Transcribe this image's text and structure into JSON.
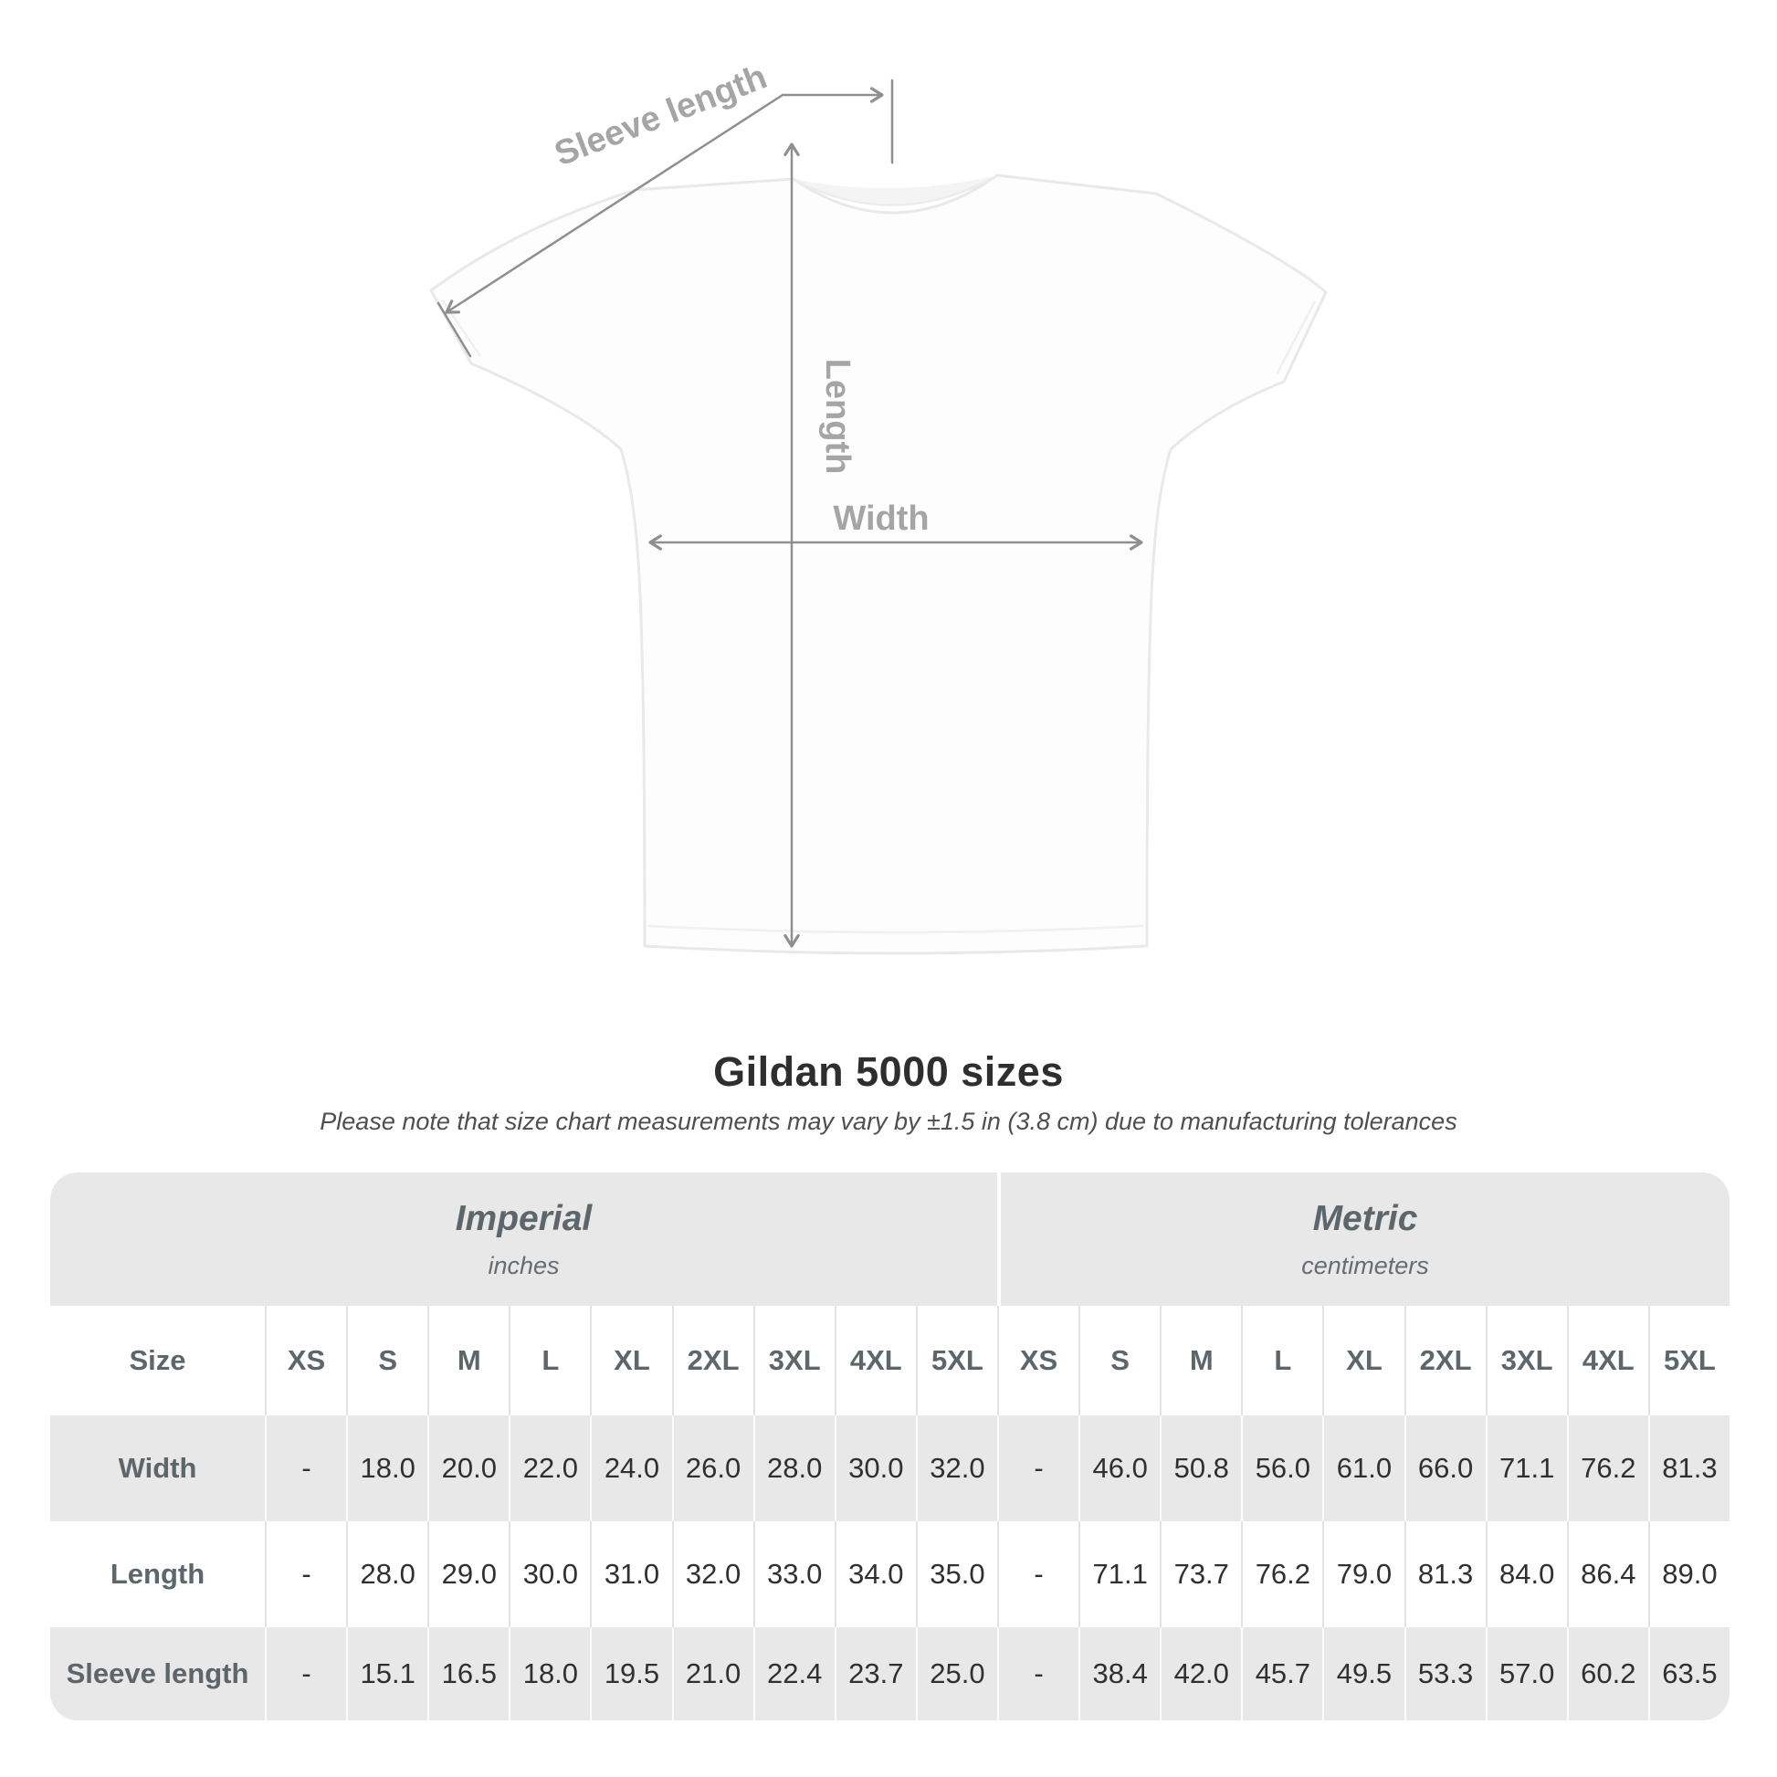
{
  "diagram": {
    "sleeve_length_label": "Sleeve length",
    "length_label": "Length",
    "width_label": "Width"
  },
  "header": {
    "title": "Gildan 5000 sizes",
    "subtitle": "Please note that size chart measurements may vary by ±1.5 in (3.8 cm) due to manufacturing tolerances"
  },
  "table": {
    "size_column_header": "Size",
    "groups": [
      {
        "label": "Imperial",
        "unit": "inches"
      },
      {
        "label": "Metric",
        "unit": "centimeters"
      }
    ],
    "sizes": [
      "XS",
      "S",
      "M",
      "L",
      "XL",
      "2XL",
      "3XL",
      "4XL",
      "5XL"
    ],
    "rows": [
      {
        "label": "Width",
        "imperial": [
          "-",
          "18.0",
          "20.0",
          "22.0",
          "24.0",
          "26.0",
          "28.0",
          "30.0",
          "32.0"
        ],
        "metric": [
          "-",
          "46.0",
          "50.8",
          "56.0",
          "61.0",
          "66.0",
          "71.1",
          "76.2",
          "81.3"
        ]
      },
      {
        "label": "Length",
        "imperial": [
          "-",
          "28.0",
          "29.0",
          "30.0",
          "31.0",
          "32.0",
          "33.0",
          "34.0",
          "35.0"
        ],
        "metric": [
          "-",
          "71.1",
          "73.7",
          "76.2",
          "79.0",
          "81.3",
          "84.0",
          "86.4",
          "89.0"
        ]
      },
      {
        "label": "Sleeve length",
        "imperial": [
          "-",
          "15.1",
          "16.5",
          "18.0",
          "19.5",
          "21.0",
          "22.4",
          "23.7",
          "25.0"
        ],
        "metric": [
          "-",
          "38.4",
          "42.0",
          "45.7",
          "49.5",
          "53.3",
          "57.0",
          "60.2",
          "63.5"
        ]
      }
    ]
  },
  "colors": {
    "row_shade": "#e8e8e8",
    "header_text": "#5d676b",
    "data_text": "#303030",
    "dimension_line": "#8f8f8f",
    "dimension_label": "#a5a5a5"
  },
  "chart_data": {
    "type": "table",
    "title": "Gildan 5000 sizes",
    "note": "Please note that size chart measurements may vary by ±1.5 in (3.8 cm) due to manufacturing tolerances",
    "column_groups": [
      "Imperial (inches)",
      "Metric (centimeters)"
    ],
    "columns": [
      "XS",
      "S",
      "M",
      "L",
      "XL",
      "2XL",
      "3XL",
      "4XL",
      "5XL"
    ],
    "rows": [
      {
        "measurement": "Width",
        "imperial_in": [
          null,
          18.0,
          20.0,
          22.0,
          24.0,
          26.0,
          28.0,
          30.0,
          32.0
        ],
        "metric_cm": [
          null,
          46.0,
          50.8,
          56.0,
          61.0,
          66.0,
          71.1,
          76.2,
          81.3
        ]
      },
      {
        "measurement": "Length",
        "imperial_in": [
          null,
          28.0,
          29.0,
          30.0,
          31.0,
          32.0,
          33.0,
          34.0,
          35.0
        ],
        "metric_cm": [
          null,
          71.1,
          73.7,
          76.2,
          79.0,
          81.3,
          84.0,
          86.4,
          89.0
        ]
      },
      {
        "measurement": "Sleeve length",
        "imperial_in": [
          null,
          15.1,
          16.5,
          18.0,
          19.5,
          21.0,
          22.4,
          23.7,
          25.0
        ],
        "metric_cm": [
          null,
          38.4,
          42.0,
          45.7,
          49.5,
          53.3,
          57.0,
          60.2,
          63.5
        ]
      }
    ]
  }
}
